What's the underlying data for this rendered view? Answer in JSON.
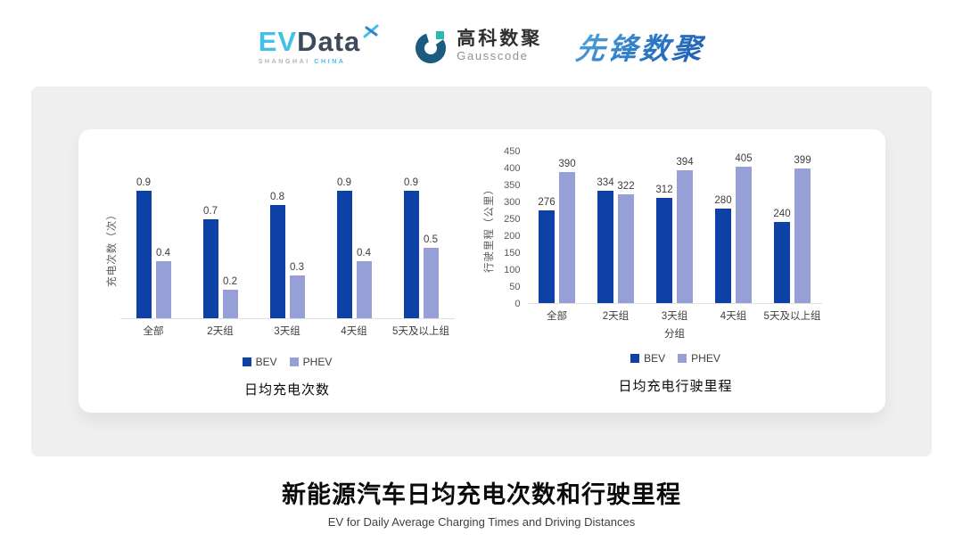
{
  "header": {
    "evdata": {
      "ev": "EV",
      "data": "Data",
      "tagline_left": "SHANGHAI",
      "tagline_right": "CHINA"
    },
    "gausscode": {
      "cn": "高科数聚",
      "en": "Gausscode"
    },
    "xianfeng": {
      "text": "先锋数聚"
    }
  },
  "colors": {
    "bev": "#0d41a6",
    "phev": "#96a0d6",
    "card_bg": "#efefef",
    "axis_line": "#e0e0e0",
    "gauss_dark": "#1d5a80",
    "gauss_teal": "#2cb9b0",
    "evdata_cyan": "#45bfe8",
    "evdata_dark": "#3d4a5c"
  },
  "chart_data": [
    {
      "type": "bar",
      "title": "日均充电次数",
      "ylabel": "充电次数（次）",
      "xlabel": "",
      "categories": [
        "全部",
        "2天组",
        "3天组",
        "4天组",
        "5天及以上组"
      ],
      "series": [
        {
          "name": "BEV",
          "color": "#0d41a6",
          "values": [
            0.9,
            0.7,
            0.8,
            0.9,
            0.9
          ]
        },
        {
          "name": "PHEV",
          "color": "#96a0d6",
          "values": [
            0.4,
            0.2,
            0.3,
            0.4,
            0.5
          ]
        }
      ],
      "ylim": [
        0,
        1.0
      ],
      "yticks": [],
      "grid": false,
      "legend_position": "bottom"
    },
    {
      "type": "bar",
      "title": "日均充电行驶里程",
      "ylabel": "行驶里程（公里）",
      "xlabel": "分组",
      "categories": [
        "全部",
        "2天组",
        "3天组",
        "4天组",
        "5天及以上组"
      ],
      "series": [
        {
          "name": "BEV",
          "color": "#0d41a6",
          "values": [
            276,
            334,
            312,
            280,
            240
          ]
        },
        {
          "name": "PHEV",
          "color": "#96a0d6",
          "values": [
            390,
            322,
            394,
            405,
            399
          ]
        }
      ],
      "ylim": [
        0,
        450
      ],
      "yticks": [
        0,
        50,
        100,
        150,
        200,
        250,
        300,
        350,
        400,
        450
      ],
      "grid": false,
      "legend_position": "bottom"
    }
  ],
  "footer": {
    "title": "新能源汽车日均充电次数和行驶里程",
    "subtitle": "EV for Daily Average Charging Times and Driving Distances"
  }
}
